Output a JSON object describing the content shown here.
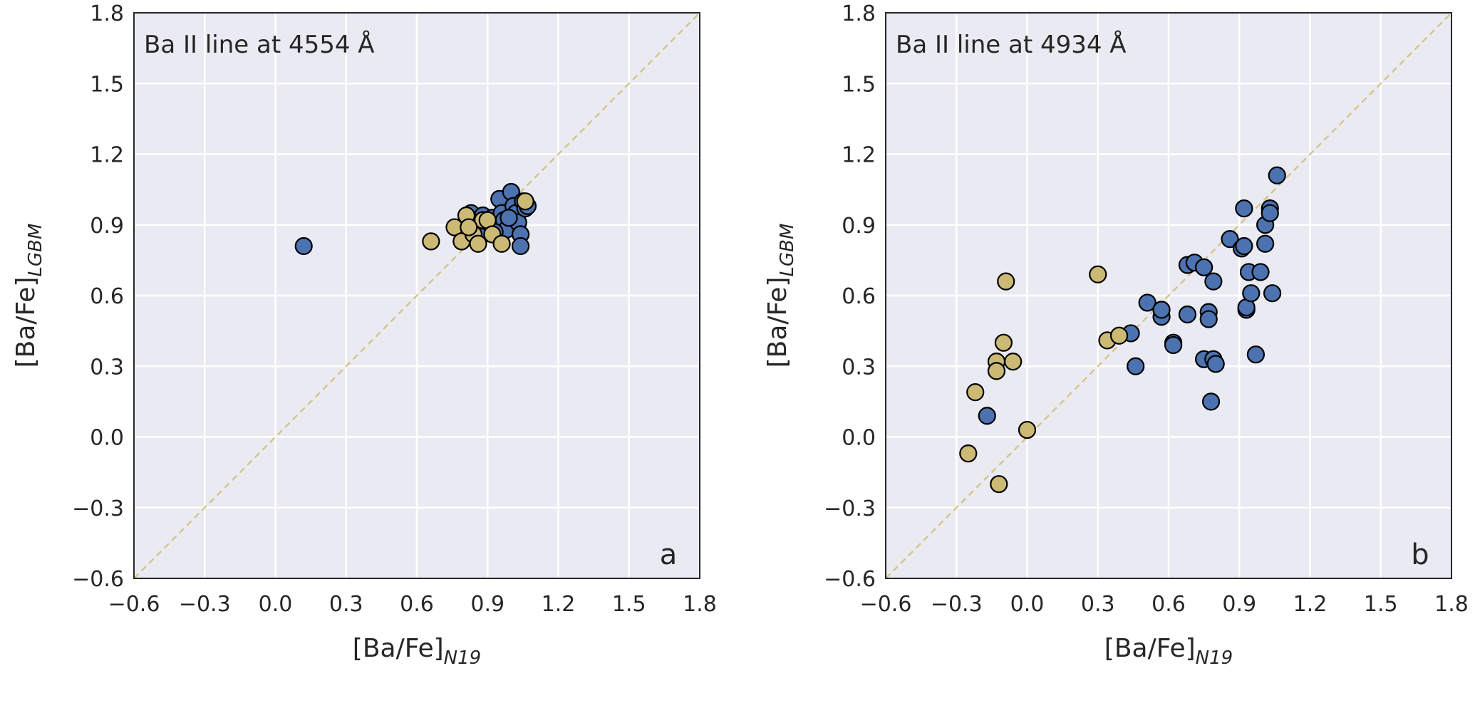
{
  "chart_data": [
    {
      "type": "scatter",
      "panel_label": "a",
      "annotation": "Ba II line at 4554 Å",
      "xlabel": "[Ba/Fe]",
      "xlabel_sub": "N19",
      "ylabel": "[Ba/Fe]",
      "ylabel_sub": "LGBM",
      "xlim": [
        -0.6,
        1.8
      ],
      "ylim": [
        -0.6,
        1.8
      ],
      "xticks": [
        -0.6,
        -0.3,
        0.0,
        0.3,
        0.6,
        0.9,
        1.2,
        1.5,
        1.8
      ],
      "yticks": [
        -0.6,
        -0.3,
        0.0,
        0.3,
        0.6,
        0.9,
        1.2,
        1.5,
        1.8
      ],
      "xtick_labels": [
        "−0.6",
        "−0.3",
        "0.0",
        "0.3",
        "0.6",
        "0.9",
        "1.2",
        "1.5",
        "1.8"
      ],
      "ytick_labels": [
        "−0.6",
        "−0.3",
        "0.0",
        "0.3",
        "0.6",
        "0.9",
        "1.2",
        "1.5",
        "1.8"
      ],
      "grid": true,
      "reference_line": "y = x",
      "colors": {
        "background": "#eaeaf2",
        "grid": "#ffffff",
        "blue": "#4c72b0",
        "gold": "#ccb974",
        "edge": "#000000",
        "diag": "#d8c48a"
      },
      "series": [
        {
          "name": "blue",
          "color": "#4c72b0",
          "points": [
            [
              0.12,
              0.81
            ],
            [
              0.83,
              0.95
            ],
            [
              0.84,
              0.92
            ],
            [
              0.86,
              0.88
            ],
            [
              0.88,
              0.94
            ],
            [
              0.9,
              0.91
            ],
            [
              0.92,
              0.93
            ],
            [
              0.94,
              0.9
            ],
            [
              0.95,
              1.01
            ],
            [
              0.96,
              0.95
            ],
            [
              0.97,
              0.92
            ],
            [
              0.98,
              0.88
            ],
            [
              1.0,
              1.04
            ],
            [
              1.01,
              0.98
            ],
            [
              1.02,
              0.95
            ],
            [
              1.03,
              0.91
            ],
            [
              1.04,
              0.86
            ],
            [
              1.04,
              0.81
            ],
            [
              1.05,
              1.0
            ],
            [
              1.06,
              0.97
            ],
            [
              0.99,
              0.93
            ],
            [
              0.93,
              0.87
            ],
            [
              0.87,
              0.85
            ],
            [
              1.07,
              0.98
            ],
            [
              0.85,
              0.91
            ]
          ]
        },
        {
          "name": "gold",
          "color": "#ccb974",
          "points": [
            [
              0.66,
              0.83
            ],
            [
              0.76,
              0.89
            ],
            [
              0.79,
              0.83
            ],
            [
              0.81,
              0.94
            ],
            [
              0.84,
              0.86
            ],
            [
              0.86,
              0.82
            ],
            [
              0.88,
              0.92
            ],
            [
              0.9,
              0.92
            ],
            [
              0.92,
              0.86
            ],
            [
              0.96,
              0.82
            ],
            [
              1.06,
              1.0
            ],
            [
              0.82,
              0.89
            ]
          ]
        }
      ]
    },
    {
      "type": "scatter",
      "panel_label": "b",
      "annotation": "Ba II line at 4934 Å",
      "xlabel": "[Ba/Fe]",
      "xlabel_sub": "N19",
      "ylabel": "[Ba/Fe]",
      "ylabel_sub": "LGBM",
      "xlim": [
        -0.6,
        1.8
      ],
      "ylim": [
        -0.6,
        1.8
      ],
      "xticks": [
        -0.6,
        -0.3,
        0.0,
        0.3,
        0.6,
        0.9,
        1.2,
        1.5,
        1.8
      ],
      "yticks": [
        -0.6,
        -0.3,
        0.0,
        0.3,
        0.6,
        0.9,
        1.2,
        1.5,
        1.8
      ],
      "xtick_labels": [
        "−0.6",
        "−0.3",
        "0.0",
        "0.3",
        "0.6",
        "0.9",
        "1.2",
        "1.5",
        "1.8"
      ],
      "ytick_labels": [
        "−0.6",
        "−0.3",
        "0.0",
        "0.3",
        "0.6",
        "0.9",
        "1.2",
        "1.5",
        "1.8"
      ],
      "grid": true,
      "reference_line": "y = x",
      "colors": {
        "background": "#eaeaf2",
        "grid": "#ffffff",
        "blue": "#4c72b0",
        "gold": "#ccb974",
        "edge": "#000000",
        "diag": "#d8c48a"
      },
      "series": [
        {
          "name": "blue",
          "color": "#4c72b0",
          "points": [
            [
              -0.17,
              0.09
            ],
            [
              0.44,
              0.44
            ],
            [
              0.46,
              0.3
            ],
            [
              0.51,
              0.57
            ],
            [
              0.57,
              0.51
            ],
            [
              0.57,
              0.54
            ],
            [
              0.62,
              0.4
            ],
            [
              0.62,
              0.39
            ],
            [
              0.68,
              0.52
            ],
            [
              0.68,
              0.73
            ],
            [
              0.71,
              0.74
            ],
            [
              0.75,
              0.72
            ],
            [
              0.75,
              0.33
            ],
            [
              0.77,
              0.53
            ],
            [
              0.77,
              0.5
            ],
            [
              0.78,
              0.15
            ],
            [
              0.79,
              0.33
            ],
            [
              0.79,
              0.66
            ],
            [
              0.8,
              0.31
            ],
            [
              0.86,
              0.84
            ],
            [
              0.91,
              0.8
            ],
            [
              0.92,
              0.97
            ],
            [
              0.93,
              0.54
            ],
            [
              0.93,
              0.55
            ],
            [
              0.94,
              0.7
            ],
            [
              0.95,
              0.61
            ],
            [
              0.97,
              0.35
            ],
            [
              0.99,
              0.7
            ],
            [
              1.01,
              0.82
            ],
            [
              1.01,
              0.9
            ],
            [
              1.03,
              0.97
            ],
            [
              1.03,
              0.95
            ],
            [
              1.04,
              0.61
            ],
            [
              1.06,
              1.11
            ],
            [
              0.92,
              0.81
            ]
          ]
        },
        {
          "name": "gold",
          "color": "#ccb974",
          "points": [
            [
              -0.25,
              -0.07
            ],
            [
              -0.22,
              0.19
            ],
            [
              -0.13,
              0.32
            ],
            [
              -0.13,
              0.28
            ],
            [
              -0.12,
              -0.2
            ],
            [
              -0.1,
              0.4
            ],
            [
              -0.09,
              0.66
            ],
            [
              -0.06,
              0.32
            ],
            [
              0.0,
              0.03
            ],
            [
              0.3,
              0.69
            ],
            [
              0.34,
              0.41
            ],
            [
              0.39,
              0.43
            ]
          ]
        }
      ]
    }
  ]
}
